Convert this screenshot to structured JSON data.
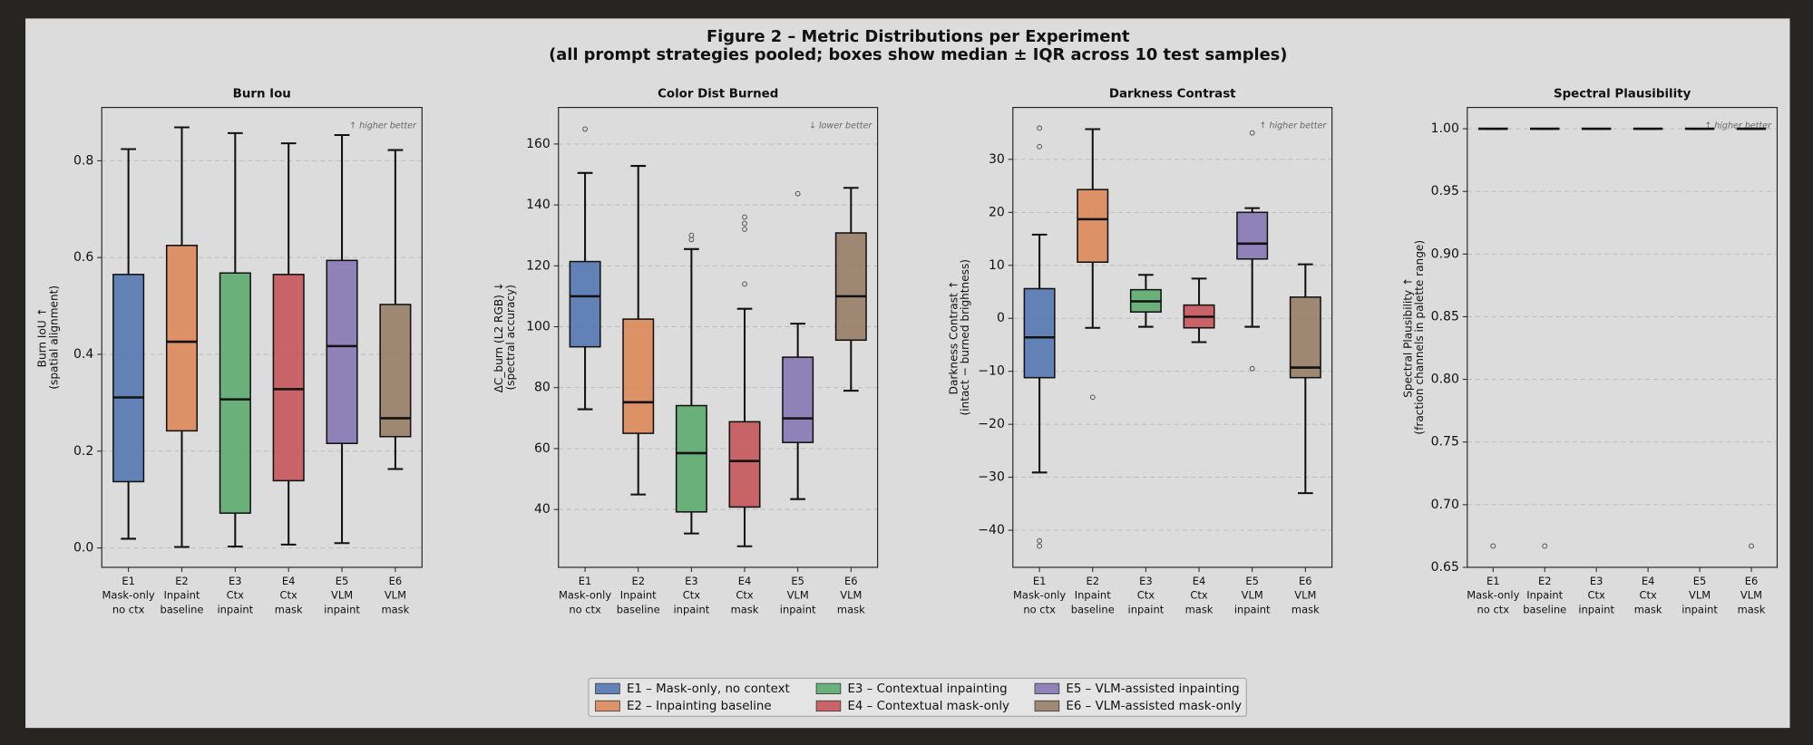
{
  "figure": {
    "title": "Figure 2 – Metric Distributions per Experiment",
    "subtitle": "(all prompt strategies pooled; boxes show median ± IQR across 10 test samples)",
    "legend": [
      {
        "name": "E1 – Mask-only, no context",
        "color": "#4c72b0"
      },
      {
        "name": "E2 – Inpainting baseline",
        "color": "#dd8452"
      },
      {
        "name": "E3 – Contextual inpainting",
        "color": "#55a868"
      },
      {
        "name": "E4 – Contextual mask-only",
        "color": "#c44e52"
      },
      {
        "name": "E5 – VLM-assisted inpainting",
        "color": "#8172b3"
      },
      {
        "name": "E6 – VLM-assisted mask-only",
        "color": "#937860"
      }
    ]
  },
  "chart_data": [
    {
      "type": "box",
      "title": "Burn Iou",
      "annotation": "↑ higher better",
      "ylabel": [
        "Burn IoU ↑",
        "(spatial alignment)"
      ],
      "categories": [
        [
          "E1",
          "Mask-only",
          "no ctx"
        ],
        [
          "E2",
          "Inpaint",
          "baseline"
        ],
        [
          "E3",
          "Ctx",
          "inpaint"
        ],
        [
          "E4",
          "Ctx",
          "mask"
        ],
        [
          "E5",
          "VLM",
          "inpaint"
        ],
        [
          "E6",
          "VLM",
          "mask"
        ]
      ],
      "ylim": [
        -0.04,
        0.91
      ],
      "yticks": [
        {
          "value": 0,
          "label": "0.0"
        },
        0.2,
        0.4,
        0.6,
        0.8
      ],
      "grid": true,
      "boxes": [
        {
          "whisker_low": 0.019,
          "q1": 0.137,
          "median": 0.311,
          "q3": 0.565,
          "whisker_high": 0.824,
          "outliers": []
        },
        {
          "whisker_low": 0.002,
          "q1": 0.242,
          "median": 0.426,
          "q3": 0.625,
          "whisker_high": 0.869,
          "outliers": []
        },
        {
          "whisker_low": 0.003,
          "q1": 0.072,
          "median": 0.307,
          "q3": 0.568,
          "whisker_high": 0.857,
          "outliers": []
        },
        {
          "whisker_low": 0.007,
          "q1": 0.139,
          "median": 0.328,
          "q3": 0.565,
          "whisker_high": 0.836,
          "outliers": []
        },
        {
          "whisker_low": 0.01,
          "q1": 0.216,
          "median": 0.417,
          "q3": 0.594,
          "whisker_high": 0.853,
          "outliers": []
        },
        {
          "whisker_low": 0.163,
          "q1": 0.23,
          "median": 0.268,
          "q3": 0.503,
          "whisker_high": 0.822,
          "outliers": []
        }
      ]
    },
    {
      "type": "box",
      "title": "Color Dist Burned",
      "annotation": "↓ lower better",
      "ylabel": [
        "ΔC_burn (L2 RGB) ↓",
        "(spectral accuracy)"
      ],
      "categories": [
        [
          "E1",
          "Mask-only",
          "no ctx"
        ],
        [
          "E2",
          "Inpaint",
          "baseline"
        ],
        [
          "E3",
          "Ctx",
          "inpaint"
        ],
        [
          "E4",
          "Ctx",
          "mask"
        ],
        [
          "E5",
          "VLM",
          "inpaint"
        ],
        [
          "E6",
          "VLM",
          "mask"
        ]
      ],
      "ylim": [
        21,
        172
      ],
      "yticks": [
        40,
        60,
        80,
        100,
        120,
        140,
        160
      ],
      "grid": true,
      "boxes": [
        {
          "whisker_low": 72.9,
          "q1": 93.4,
          "median": 110,
          "q3": 121.4,
          "whisker_high": 150.5,
          "outliers": [
            164.9
          ]
        },
        {
          "whisker_low": 44.9,
          "q1": 65,
          "median": 75.2,
          "q3": 102.5,
          "whisker_high": 152.8,
          "outliers": []
        },
        {
          "whisker_low": 32.1,
          "q1": 39.2,
          "median": 58.5,
          "q3": 74.1,
          "whisker_high": 125.5,
          "outliers": [
            130,
            128.6
          ]
        },
        {
          "whisker_low": 27.9,
          "q1": 40.8,
          "median": 55.9,
          "q3": 68.8,
          "whisker_high": 105.9,
          "outliers": [
            136,
            133.9,
            132,
            114
          ]
        },
        {
          "whisker_low": 43.4,
          "q1": 62,
          "median": 69.9,
          "q3": 90,
          "whisker_high": 101,
          "outliers": [
            143.7
          ]
        },
        {
          "whisker_low": 79,
          "q1": 95.6,
          "median": 110,
          "q3": 130.8,
          "whisker_high": 145.6,
          "outliers": []
        }
      ]
    },
    {
      "type": "box",
      "title": "Darkness Contrast",
      "annotation": "↑ higher better",
      "ylabel": [
        "Darkness Contrast ↑",
        "(intact − burned brightness)"
      ],
      "categories": [
        [
          "E1",
          "Mask-only",
          "no ctx"
        ],
        [
          "E2",
          "Inpaint",
          "baseline"
        ],
        [
          "E3",
          "Ctx",
          "inpaint"
        ],
        [
          "E4",
          "Ctx",
          "mask"
        ],
        [
          "E5",
          "VLM",
          "inpaint"
        ],
        [
          "E6",
          "VLM",
          "mask"
        ]
      ],
      "ylim": [
        -47,
        39.8
      ],
      "yticks": [
        {
          "value": -40,
          "label": "−40"
        },
        {
          "value": -30,
          "label": "−30"
        },
        {
          "value": -20,
          "label": "−20"
        },
        {
          "value": -10,
          "label": "−10"
        },
        0,
        10,
        20,
        30
      ],
      "grid": true,
      "boxes": [
        {
          "whisker_low": -29.1,
          "q1": -11.2,
          "median": -3.6,
          "q3": 5.6,
          "whisker_high": 15.8,
          "outliers": [
            35.9,
            32.4,
            -42,
            -43
          ]
        },
        {
          "whisker_low": -1.8,
          "q1": 10.6,
          "median": 18.7,
          "q3": 24.3,
          "whisker_high": 35.7,
          "outliers": [
            -14.9
          ]
        },
        {
          "whisker_low": -1.6,
          "q1": 1.2,
          "median": 3.2,
          "q3": 5.4,
          "whisker_high": 8.2,
          "outliers": []
        },
        {
          "whisker_low": -4.5,
          "q1": -1.8,
          "median": 0.3,
          "q3": 2.5,
          "whisker_high": 7.5,
          "outliers": []
        },
        {
          "whisker_low": -1.6,
          "q1": 11.2,
          "median": 14.1,
          "q3": 20,
          "whisker_high": 20.8,
          "outliers": [
            35,
            -9.5
          ]
        },
        {
          "whisker_low": -33,
          "q1": -11.2,
          "median": -9.3,
          "q3": 4,
          "whisker_high": 10.2,
          "outliers": []
        }
      ]
    },
    {
      "type": "box",
      "title": "Spectral Plausibility",
      "annotation": "↑ higher better",
      "ylabel": [
        "Spectral Plausibility ↑",
        "(fraction channels in palette range)"
      ],
      "categories": [
        [
          "E1",
          "Mask-only",
          "no ctx"
        ],
        [
          "E2",
          "Inpaint",
          "baseline"
        ],
        [
          "E3",
          "Ctx",
          "inpaint"
        ],
        [
          "E4",
          "Ctx",
          "mask"
        ],
        [
          "E5",
          "VLM",
          "inpaint"
        ],
        [
          "E6",
          "VLM",
          "mask"
        ]
      ],
      "ylim": [
        0.65,
        1.017
      ],
      "yticks": [
        0.65,
        {
          "value": 0.7,
          "label": "0.70"
        },
        0.75,
        {
          "value": 0.8,
          "label": "0.80"
        },
        0.85,
        {
          "value": 0.9,
          "label": "0.90"
        },
        0.95,
        {
          "value": 1,
          "label": "1.00"
        }
      ],
      "grid": true,
      "boxes": [
        {
          "whisker_low": 1,
          "q1": 1,
          "median": 1,
          "q3": 1,
          "whisker_high": 1,
          "outliers": [
            0.667
          ]
        },
        {
          "whisker_low": 1,
          "q1": 1,
          "median": 1,
          "q3": 1,
          "whisker_high": 1,
          "outliers": [
            0.667
          ]
        },
        {
          "whisker_low": 1,
          "q1": 1,
          "median": 1,
          "q3": 1,
          "whisker_high": 1,
          "outliers": []
        },
        {
          "whisker_low": 1,
          "q1": 1,
          "median": 1,
          "q3": 1,
          "whisker_high": 1,
          "outliers": []
        },
        {
          "whisker_low": 1,
          "q1": 1,
          "median": 1,
          "q3": 1,
          "whisker_high": 1,
          "outliers": []
        },
        {
          "whisker_low": 1,
          "q1": 1,
          "median": 1,
          "q3": 1,
          "whisker_high": 1,
          "outliers": [
            0.667
          ]
        }
      ]
    }
  ]
}
